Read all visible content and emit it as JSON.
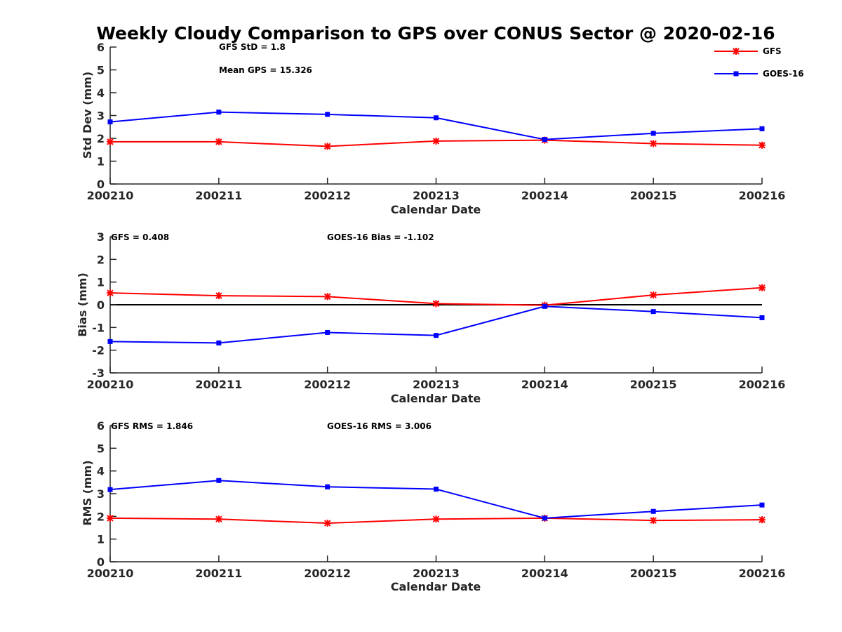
{
  "title": "Weekly Cloudy Comparison to GPS over CONUS Sector @ 2020-02-16",
  "legend": [
    {
      "label": "GFS",
      "color": "#ff0000",
      "marker": "asterisk"
    },
    {
      "label": "GOES-16",
      "color": "#0000ff",
      "marker": "square"
    }
  ],
  "chart_data": [
    {
      "type": "line",
      "categories": [
        "200210",
        "200211",
        "200212",
        "200213",
        "200214",
        "200215",
        "200216"
      ],
      "xlabel": "Calendar Date",
      "ylabel": "Std Dev (mm)",
      "ylim": [
        0,
        6
      ],
      "yticks": [
        0,
        1,
        2,
        3,
        4,
        5,
        6
      ],
      "zero_line": false,
      "annotations": [
        "GFS StD = 1.8",
        "Mean GPS = 15.326"
      ],
      "series": [
        {
          "name": "GFS",
          "values": [
            1.85,
            1.85,
            1.65,
            1.88,
            1.92,
            1.77,
            1.7
          ]
        },
        {
          "name": "GOES-16",
          "values": [
            2.72,
            3.15,
            3.05,
            2.9,
            1.95,
            2.22,
            2.42
          ]
        }
      ]
    },
    {
      "type": "line",
      "categories": [
        "200210",
        "200211",
        "200212",
        "200213",
        "200214",
        "200215",
        "200216"
      ],
      "xlabel": "Calendar Date",
      "ylabel": "Bias (mm)",
      "ylim": [
        -3,
        3
      ],
      "yticks": [
        -3,
        -2,
        -1,
        0,
        1,
        2,
        3
      ],
      "zero_line": true,
      "annotations": [
        "GFS = 0.408",
        "GOES-16 Bias  = -1.102"
      ],
      "series": [
        {
          "name": "GFS",
          "values": [
            0.52,
            0.4,
            0.36,
            0.05,
            -0.02,
            0.43,
            0.75
          ]
        },
        {
          "name": "GOES-16",
          "values": [
            -1.62,
            -1.68,
            -1.22,
            -1.35,
            -0.07,
            -0.3,
            -0.57
          ]
        }
      ]
    },
    {
      "type": "line",
      "categories": [
        "200210",
        "200211",
        "200212",
        "200213",
        "200214",
        "200215",
        "200216"
      ],
      "xlabel": "Calendar Date",
      "ylabel": "RMS (mm)",
      "ylim": [
        0,
        6
      ],
      "yticks": [
        0,
        1,
        2,
        3,
        4,
        5,
        6
      ],
      "zero_line": false,
      "annotations": [
        "GFS RMS = 1.846",
        "GOES-16 RMS = 3.006"
      ],
      "series": [
        {
          "name": "GFS",
          "values": [
            1.92,
            1.88,
            1.7,
            1.88,
            1.92,
            1.82,
            1.85
          ]
        },
        {
          "name": "GOES-16",
          "values": [
            3.18,
            3.58,
            3.3,
            3.2,
            1.92,
            2.22,
            2.5
          ]
        }
      ]
    }
  ]
}
